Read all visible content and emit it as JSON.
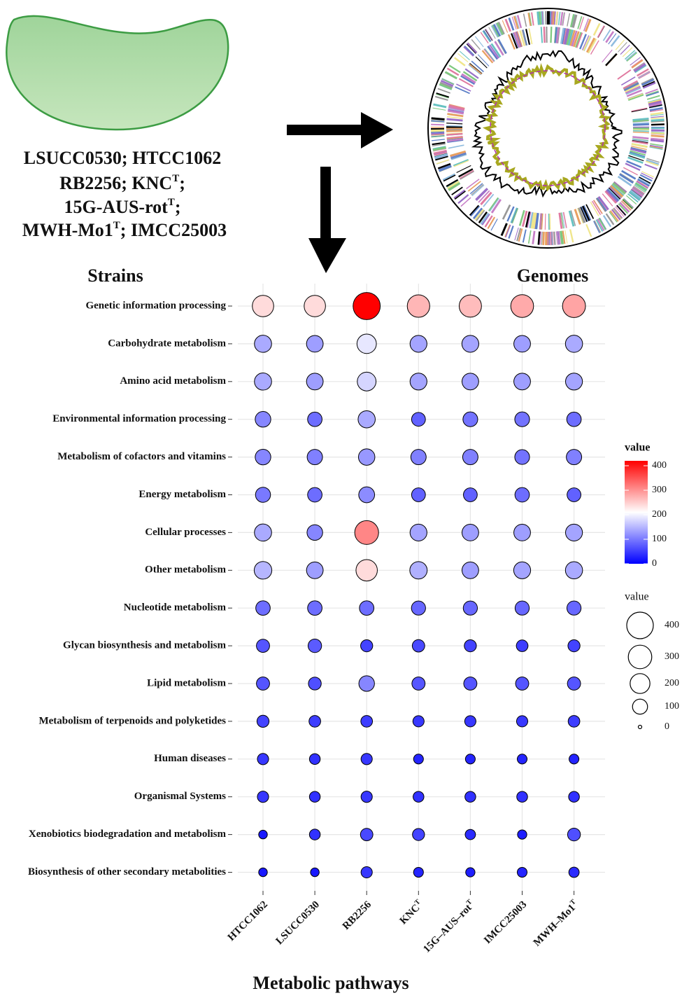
{
  "illustration": {
    "strain_lines": [
      [
        {
          "text": "LSUCC0530; HTCC1062"
        }
      ],
      [
        {
          "text": "RB2256; KNC"
        },
        {
          "sup": "T"
        },
        {
          "text": ";"
        }
      ],
      [
        {
          "text": "15G-AUS-rot"
        },
        {
          "sup": "T"
        },
        {
          "text": ";"
        }
      ],
      [
        {
          "text": "MWH-Mo1"
        },
        {
          "sup": "T"
        },
        {
          "text": ";  IMCC25003"
        }
      ]
    ],
    "strains_label": "Strains",
    "genomes_label": "Genomes"
  },
  "chart_data": {
    "type": "bubble",
    "x_label": "Metabolic pathways",
    "categories": [
      "Genetic information processing",
      "Carbohydrate metabolism",
      "Amino acid metabolism",
      "Environmental information processing",
      "Metabolism of cofactors and vitamins",
      "Energy metabolism",
      "Cellular processes",
      "Other metabolism",
      "Nucleotide metabolism",
      "Glycan biosynthesis and metabolism",
      "Lipid metabolism",
      "Metabolism of terpenoids and polyketides",
      "Human diseases",
      "Organismal Systems",
      "Xenobiotics biodegradation and metabolism",
      "Biosynthesis of other secondary metabolities"
    ],
    "series": [
      {
        "name": "HTCC1062",
        "values": [
          240,
          140,
          140,
          110,
          110,
          100,
          140,
          150,
          90,
          70,
          70,
          55,
          45,
          45,
          20,
          20
        ]
      },
      {
        "name": "LSUCC0530",
        "values": [
          240,
          130,
          130,
          90,
          105,
          90,
          110,
          130,
          90,
          75,
          65,
          50,
          40,
          40,
          40,
          20
        ]
      },
      {
        "name": "RB2256",
        "values": [
          420,
          190,
          175,
          140,
          125,
          115,
          310,
          240,
          90,
          55,
          110,
          50,
          45,
          45,
          60,
          45
        ]
      },
      {
        "name": "KNC",
        "name_sup": "T",
        "values": [
          270,
          135,
          135,
          80,
          105,
          80,
          135,
          145,
          85,
          60,
          70,
          45,
          30,
          40,
          55,
          30
        ]
      },
      {
        "name": "15G–AUS–rot",
        "name_sup": "T",
        "values": [
          265,
          135,
          130,
          95,
          105,
          80,
          130,
          130,
          85,
          55,
          70,
          45,
          30,
          40,
          35,
          25
        ]
      },
      {
        "name": "IMCC25003",
        "values": [
          280,
          130,
          130,
          95,
          95,
          90,
          130,
          135,
          85,
          50,
          70,
          45,
          30,
          40,
          25,
          30
        ]
      },
      {
        "name": "MWH–Mo1",
        "name_sup": "T",
        "values": [
          285,
          140,
          135,
          90,
          105,
          80,
          135,
          140,
          85,
          55,
          70,
          50,
          30,
          40,
          65,
          35
        ]
      }
    ],
    "grid": true,
    "color_scale": {
      "title": "value",
      "lim": [
        0,
        420
      ],
      "ticks": [
        0,
        100,
        200,
        300,
        400
      ],
      "colors": [
        "#0000ff",
        "#ffffff",
        "#ff0000"
      ]
    },
    "size_legend": {
      "title": "value",
      "values": [
        400,
        300,
        200,
        100,
        0
      ],
      "max": 400
    }
  }
}
